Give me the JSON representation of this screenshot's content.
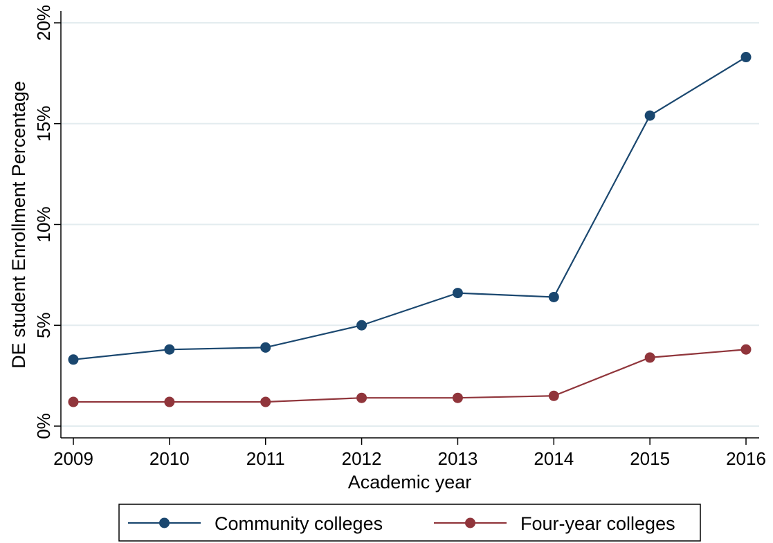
{
  "chart_data": {
    "type": "line",
    "xlabel": "Academic year",
    "ylabel": "DE student Enrollment Percentage",
    "x": [
      2009,
      2010,
      2011,
      2012,
      2013,
      2014,
      2015,
      2016
    ],
    "x_tick_labels": [
      "2009",
      "2010",
      "2011",
      "2012",
      "2013",
      "2014",
      "2015",
      "2016"
    ],
    "y_ticks": [
      0,
      5,
      10,
      15,
      20
    ],
    "y_tick_labels": [
      "0%",
      "5%",
      "10%",
      "15%",
      "20%"
    ],
    "ylim": [
      0,
      20
    ],
    "grid": true,
    "legend_position": "bottom",
    "series": [
      {
        "name": "Community colleges",
        "color": "#1a476f",
        "values": [
          3.3,
          3.8,
          3.9,
          5.0,
          6.6,
          6.4,
          15.4,
          18.3
        ]
      },
      {
        "name": "Four-year colleges",
        "color": "#90353b",
        "values": [
          1.2,
          1.2,
          1.2,
          1.4,
          1.4,
          1.5,
          3.4,
          3.8
        ]
      }
    ]
  }
}
